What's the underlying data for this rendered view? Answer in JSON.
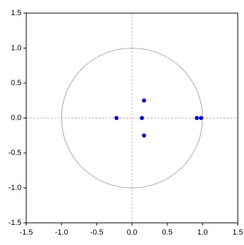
{
  "chart_data": {
    "type": "scatter",
    "x": [
      -0.22,
      0.14,
      0.17,
      0.17,
      0.92,
      0.98
    ],
    "values": [
      0,
      0,
      0.25,
      -0.25,
      0,
      0
    ],
    "color": "#0000cc",
    "xlim": [
      -1.5,
      1.5
    ],
    "ylim": [
      -1.5,
      1.5
    ],
    "xticks": [
      -1.5,
      {
        "value": -1,
        "label": "-1.0"
      },
      -0.5,
      {
        "value": 0,
        "label": "0.0"
      },
      0.5,
      {
        "value": 1,
        "label": "1.0"
      },
      1.5
    ],
    "yticks": [
      -1.5,
      {
        "value": -1,
        "label": "-1.0"
      },
      -0.5,
      {
        "value": 0,
        "label": "0.0"
      },
      0.5,
      {
        "value": 1,
        "label": "1.0"
      },
      1.5
    ],
    "unit_circle": true,
    "zero_lines": true
  }
}
